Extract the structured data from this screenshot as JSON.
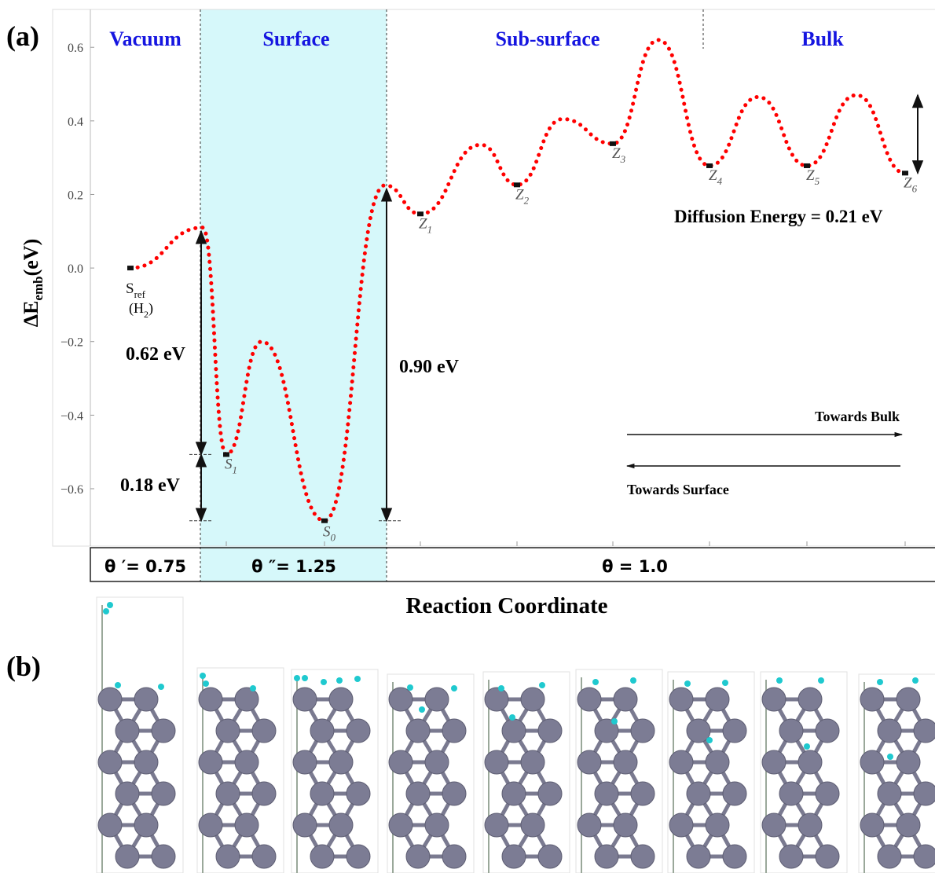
{
  "chart_data": {
    "type": "line",
    "panel_labels": [
      "(a)",
      "(b)"
    ],
    "ylabel": {
      "main": "ΔE",
      "sub": "emb",
      "unit": "(eV)"
    },
    "xlabel": "Reaction Coordinate",
    "ylim": [
      -0.756,
      0.703
    ],
    "yticks": [
      {
        "value": -0.6,
        "label": "−0.6"
      },
      {
        "value": -0.4,
        "label": "−0.4"
      },
      {
        "value": -0.2,
        "label": "−0.2"
      },
      {
        "value": 0,
        "label": "0.0"
      },
      0.2,
      0.4,
      0.6
    ],
    "regions": [
      "Vacuum",
      "Surface",
      "Sub-surface",
      "Bulk"
    ],
    "coverage": [
      "θ ′= 0.75",
      "θ ″= 1.25",
      "θ = 1.0"
    ],
    "series": [
      {
        "color": "#ff0000",
        "values": [
          0.0,
          0.11,
          -0.507,
          -0.2,
          -0.687,
          0.225,
          0.147,
          0.335,
          0.226,
          0.405,
          0.338,
          0.62,
          0.278,
          0.465,
          0.278,
          0.47,
          0.258
        ]
      }
    ],
    "point_labels": [
      {
        "main": "S",
        "sub": "ref"
      },
      null,
      {
        "main": "S",
        "sub": "1"
      },
      null,
      {
        "main": "S",
        "sub": "0"
      },
      null,
      {
        "main": "Z",
        "sub": "1"
      },
      null,
      {
        "main": "Z",
        "sub": "2"
      },
      null,
      {
        "main": "Z",
        "sub": "3"
      },
      null,
      {
        "main": "Z",
        "sub": "4"
      },
      null,
      {
        "main": "Z",
        "sub": "5"
      },
      null,
      {
        "main": "Z",
        "sub": "6"
      }
    ],
    "reference_note": {
      "main": "(H",
      "sub": "2",
      "end": ")"
    },
    "annotations": [
      "0.62 eV",
      "0.18 eV",
      "0.90 eV",
      "Diffusion Energy = 0.21 eV",
      "Towards Bulk",
      "Towards Surface"
    ]
  }
}
